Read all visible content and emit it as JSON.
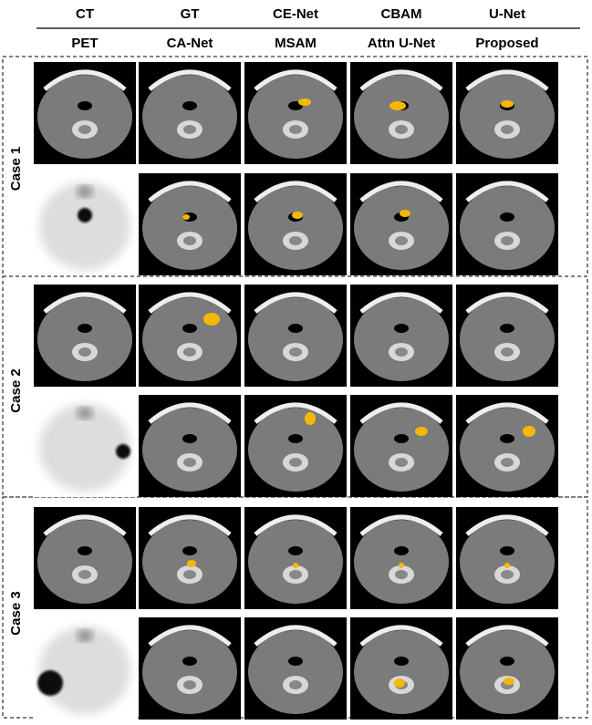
{
  "headers": {
    "row1": [
      "CT",
      "GT",
      "CE-Net",
      "CBAM",
      "U-Net"
    ],
    "row2": [
      "PET",
      "CA-Net",
      "MSAM",
      "Attn U-Net",
      "Proposed"
    ]
  },
  "cases": [
    "Case 1",
    "Case 2",
    "Case 3"
  ]
}
